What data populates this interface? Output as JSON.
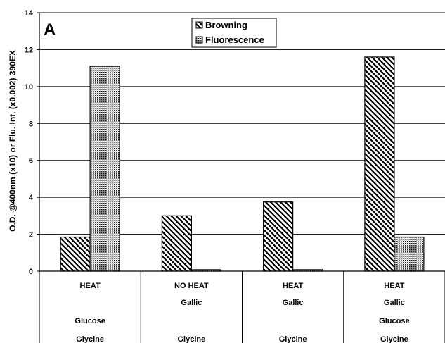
{
  "chart_data": {
    "type": "bar",
    "panel_label": "A",
    "ylabel": "O.D. @400nm (x10) or Flu. Int. (x0.002) 390EX",
    "ylim": [
      0,
      14
    ],
    "yticks": [
      0,
      2,
      4,
      6,
      8,
      10,
      12,
      14
    ],
    "grid": true,
    "legend_position": "top-center",
    "categories": [
      [
        "HEAT",
        "",
        "Glucose",
        "Glycine"
      ],
      [
        "NO HEAT",
        "Gallic",
        "",
        "Glycine"
      ],
      [
        "HEAT",
        "Gallic",
        "",
        "Glycine"
      ],
      [
        "HEAT",
        "Gallic",
        "Glucose",
        "Glycine"
      ]
    ],
    "series": [
      {
        "name": "Browning",
        "pattern": "diagonal-hatch",
        "values": [
          1.85,
          3.0,
          3.75,
          11.6
        ]
      },
      {
        "name": "Fluorescence",
        "pattern": "crosshatch-dots",
        "values": [
          11.1,
          0.08,
          0.08,
          1.85
        ]
      }
    ],
    "colors": {
      "bar_stroke": "#000000",
      "grid": "#000000",
      "background": "#ffffff"
    }
  }
}
